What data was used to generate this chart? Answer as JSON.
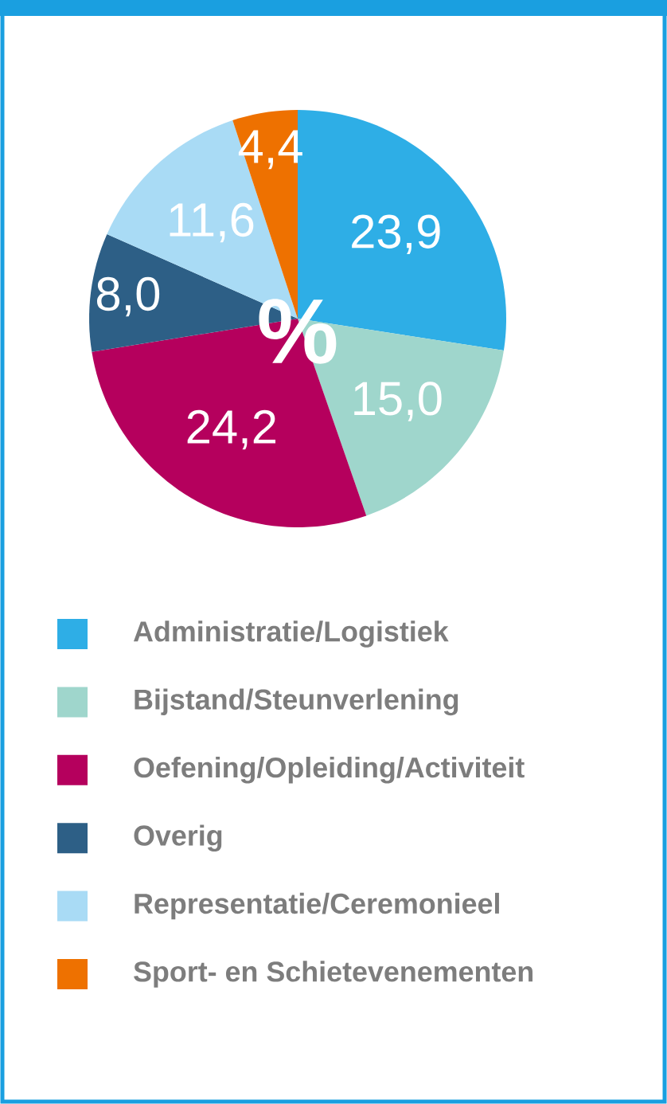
{
  "chart_data": {
    "type": "pie",
    "categories": [
      "Administratie/Logistiek",
      "Bijstand/Steunverlening",
      "Oefening/Opleiding/Activiteit",
      "Overig",
      "Representatie/Ceremonieel",
      "Sport- en Schietevenementen"
    ],
    "values": [
      23.9,
      15.0,
      24.2,
      8.0,
      11.6,
      4.4
    ],
    "value_labels": [
      "23,9",
      "15,0",
      "24,2",
      "8,0",
      "11,6",
      "4,4"
    ],
    "colors": [
      "#2eaee6",
      "#9fd6cc",
      "#b5005d",
      "#2d5f86",
      "#a9dbf5",
      "#ee7100"
    ],
    "annotations": [
      "%"
    ],
    "legend": "bottom"
  }
}
